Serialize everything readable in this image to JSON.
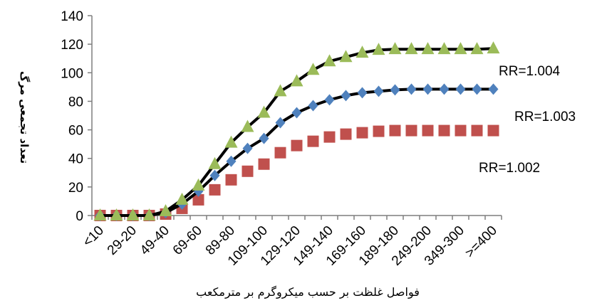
{
  "chart_data": {
    "type": "line",
    "xlabel": "فواصل غلظت بر حسب میکروگرم بر مترمکعب",
    "ylabel": "تعداد تجمعی مرگ",
    "ylim": [
      0,
      140
    ],
    "yticks": [
      "0",
      "20",
      "40",
      "60",
      "80",
      "100",
      "120",
      "140"
    ],
    "grid": false,
    "categories": [
      "<10",
      "",
      "29-20",
      "",
      "49-40",
      "",
      "69-60",
      "",
      "89-80",
      "",
      "109-100",
      "",
      "129-120",
      "",
      "149-140",
      "",
      "169-160",
      "",
      "189-180",
      "",
      "249-200",
      "",
      "349-300",
      "",
      ">=400"
    ],
    "series": [
      {
        "name": "RR=1.002",
        "color": "#c0504d",
        "marker": "square",
        "values": [
          0,
          0,
          0,
          0,
          1,
          5,
          11,
          18,
          25,
          31,
          36,
          44,
          49,
          52,
          55,
          57,
          58,
          59,
          59.5,
          59.5,
          59.5,
          59.5,
          59.5,
          59.5,
          59.5
        ]
      },
      {
        "name": "RR=1.003",
        "color": "#4f81bd",
        "marker": "diamond",
        "values": [
          0,
          0,
          0,
          0,
          2,
          8,
          17,
          28,
          38,
          47,
          54,
          65,
          72,
          77,
          81,
          84,
          86,
          87,
          88,
          88.5,
          88.5,
          88.5,
          88.5,
          88.5,
          88.5
        ]
      },
      {
        "name": "RR=1.004",
        "color": "#9bbb59",
        "marker": "triangle",
        "values": [
          0,
          0,
          0,
          0,
          3,
          11,
          21,
          36,
          51,
          62,
          72,
          87,
          94,
          102,
          108,
          111,
          114,
          116,
          116.5,
          116.5,
          116.5,
          116.5,
          116.5,
          116.5,
          117
        ]
      }
    ]
  }
}
